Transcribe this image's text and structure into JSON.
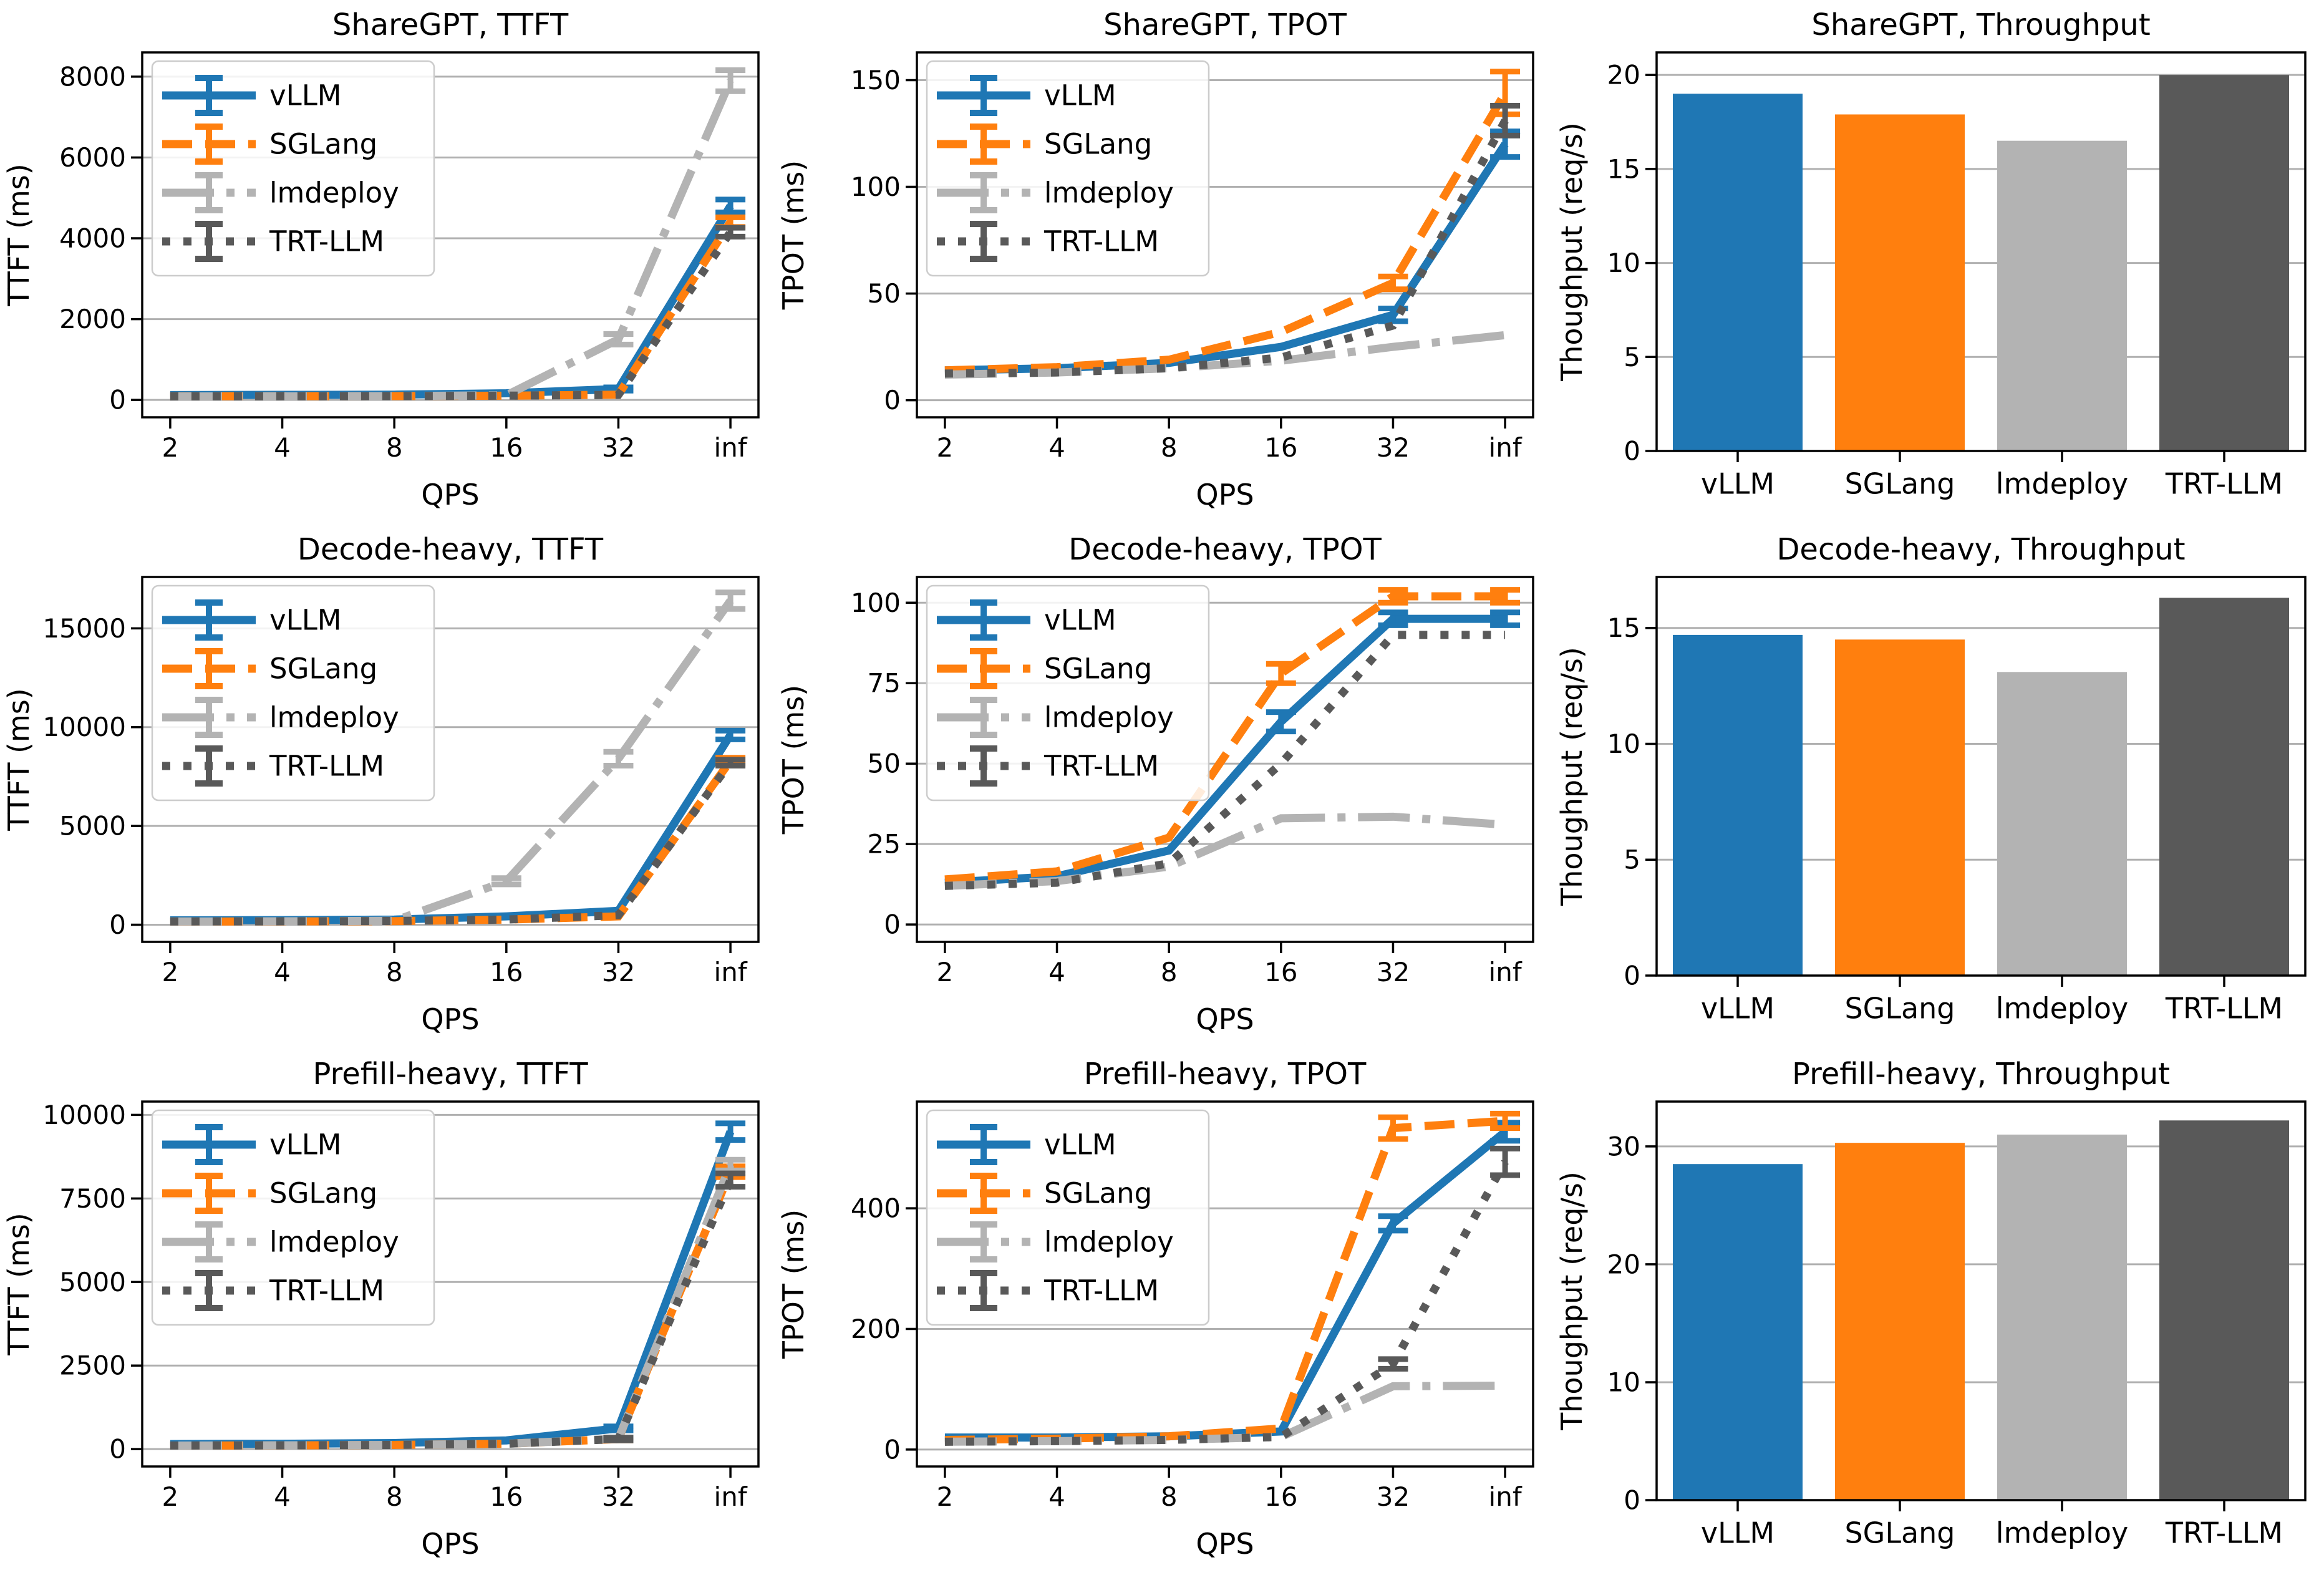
{
  "figure": {
    "background": "#ffffff",
    "grid_color": "#b0b0b0",
    "spine_color": "#000000",
    "legend_border_color": "#cccccc"
  },
  "engines": [
    "vLLM",
    "SGLang",
    "lmdeploy",
    "TRT-LLM"
  ],
  "engine_colors": [
    "#1f77b4",
    "#ff7f0e",
    "#b3b3b3",
    "#595959"
  ],
  "chart_data": [
    {
      "id": "sharegpt-ttft",
      "type": "line",
      "title": "ShareGPT, TTFT",
      "xlabel": "QPS",
      "ylabel": "TTFT (ms)",
      "x_ticklabels": [
        "2",
        "4",
        "8",
        "16",
        "32",
        "inf"
      ],
      "ylim": [
        -430,
        8600
      ],
      "yticks": [
        0,
        2000,
        4000,
        6000,
        8000
      ],
      "legend": true,
      "series": [
        {
          "name": "vLLM",
          "color": "#1f77b4",
          "linestyle": "solid",
          "values": [
            120,
            125,
            130,
            165,
            270,
            4800
          ],
          "yerr": [
            0,
            0,
            0,
            0,
            40,
            160
          ]
        },
        {
          "name": "SGLang",
          "color": "#ff7f0e",
          "linestyle": "dashed",
          "values": [
            90,
            92,
            95,
            105,
            130,
            4400
          ],
          "yerr": [
            0,
            0,
            0,
            0,
            0,
            120
          ]
        },
        {
          "name": "lmdeploy",
          "color": "#b3b3b3",
          "linestyle": "dashdot",
          "values": [
            85,
            88,
            95,
            115,
            1500,
            7900
          ],
          "yerr": [
            0,
            0,
            0,
            0,
            130,
            260
          ]
        },
        {
          "name": "TRT-LLM",
          "color": "#595959",
          "linestyle": "dotted",
          "values": [
            88,
            90,
            95,
            105,
            125,
            4150
          ],
          "yerr": [
            0,
            0,
            0,
            0,
            0,
            110
          ]
        }
      ]
    },
    {
      "id": "sharegpt-tpot",
      "type": "line",
      "title": "ShareGPT, TPOT",
      "xlabel": "QPS",
      "ylabel": "TPOT (ms)",
      "x_ticklabels": [
        "2",
        "4",
        "8",
        "16",
        "32",
        "inf"
      ],
      "ylim": [
        -8,
        163
      ],
      "yticks": [
        0,
        50,
        100,
        150
      ],
      "legend": true,
      "series": [
        {
          "name": "vLLM",
          "color": "#1f77b4",
          "linestyle": "solid",
          "values": [
            14,
            15,
            17.5,
            25,
            40,
            120
          ],
          "yerr": [
            0,
            0,
            0,
            0,
            3,
            6
          ]
        },
        {
          "name": "SGLang",
          "color": "#ff7f0e",
          "linestyle": "dashed",
          "values": [
            14,
            15.5,
            19,
            32,
            55,
            144
          ],
          "yerr": [
            0,
            0,
            0,
            0,
            3,
            10
          ]
        },
        {
          "name": "lmdeploy",
          "color": "#b3b3b3",
          "linestyle": "dashdot",
          "values": [
            12,
            13,
            15,
            18.5,
            25,
            30.5
          ],
          "yerr": [
            0,
            0,
            0,
            0,
            0,
            0
          ]
        },
        {
          "name": "TRT-LLM",
          "color": "#595959",
          "linestyle": "dotted",
          "values": [
            12.5,
            13,
            15,
            20,
            35,
            131
          ],
          "yerr": [
            0,
            0,
            0,
            0,
            0,
            7
          ]
        }
      ]
    },
    {
      "id": "sharegpt-throughput",
      "type": "bar",
      "title": "ShareGPT, Throughput",
      "ylabel": "Thoughput (req/s)",
      "categories": [
        "vLLM",
        "SGLang",
        "lmdeploy",
        "TRT-LLM"
      ],
      "values": [
        19.0,
        17.9,
        16.5,
        20.0
      ],
      "bar_colors": [
        "#1f77b4",
        "#ff7f0e",
        "#b3b3b3",
        "#595959"
      ],
      "ylim": [
        0,
        21.2
      ],
      "yticks": [
        0,
        5,
        10,
        15,
        20
      ]
    },
    {
      "id": "decode-heavy-ttft",
      "type": "line",
      "title": "Decode-heavy, TTFT",
      "xlabel": "QPS",
      "ylabel": "TTFT (ms)",
      "x_ticklabels": [
        "2",
        "4",
        "8",
        "16",
        "32",
        "inf"
      ],
      "ylim": [
        -870,
        17600
      ],
      "yticks": [
        0,
        5000,
        10000,
        15000
      ],
      "legend": true,
      "series": [
        {
          "name": "vLLM",
          "color": "#1f77b4",
          "linestyle": "solid",
          "values": [
            220,
            230,
            260,
            420,
            700,
            9600
          ],
          "yerr": [
            0,
            0,
            0,
            0,
            0,
            220
          ]
        },
        {
          "name": "SGLang",
          "color": "#ff7f0e",
          "linestyle": "dashed",
          "values": [
            160,
            165,
            180,
            260,
            420,
            8300
          ],
          "yerr": [
            0,
            0,
            0,
            0,
            0,
            150
          ]
        },
        {
          "name": "lmdeploy",
          "color": "#b3b3b3",
          "linestyle": "dashdot",
          "values": [
            160,
            170,
            200,
            2200,
            8400,
            16400
          ],
          "yerr": [
            0,
            0,
            0,
            160,
            350,
            420
          ]
        },
        {
          "name": "TRT-LLM",
          "color": "#595959",
          "linestyle": "dotted",
          "values": [
            165,
            170,
            190,
            260,
            480,
            8200
          ],
          "yerr": [
            0,
            0,
            0,
            0,
            0,
            150
          ]
        }
      ]
    },
    {
      "id": "decode-heavy-tpot",
      "type": "line",
      "title": "Decode-heavy, TPOT",
      "xlabel": "QPS",
      "ylabel": "TPOT (ms)",
      "x_ticklabels": [
        "2",
        "4",
        "8",
        "16",
        "32",
        "inf"
      ],
      "ylim": [
        -5.4,
        108
      ],
      "yticks": [
        0,
        25,
        50,
        75,
        100
      ],
      "legend": true,
      "series": [
        {
          "name": "vLLM",
          "color": "#1f77b4",
          "linestyle": "solid",
          "values": [
            13,
            15,
            23,
            63,
            95,
            95
          ],
          "yerr": [
            0,
            0,
            0,
            3,
            2,
            2
          ]
        },
        {
          "name": "SGLang",
          "color": "#ff7f0e",
          "linestyle": "dashed",
          "values": [
            14,
            16.5,
            27,
            78,
            102,
            102
          ],
          "yerr": [
            0,
            0,
            0,
            3,
            2,
            2
          ]
        },
        {
          "name": "lmdeploy",
          "color": "#b3b3b3",
          "linestyle": "dashdot",
          "values": [
            12,
            13.5,
            18,
            33,
            33.5,
            31
          ],
          "yerr": [
            0,
            0,
            0,
            0,
            0,
            0
          ]
        },
        {
          "name": "TRT-LLM",
          "color": "#595959",
          "linestyle": "dotted",
          "values": [
            12,
            13,
            19,
            50,
            90,
            90
          ],
          "yerr": [
            0,
            0,
            0,
            0,
            0,
            0
          ]
        }
      ]
    },
    {
      "id": "decode-heavy-throughput",
      "type": "bar",
      "title": "Decode-heavy, Throughput",
      "ylabel": "Thoughput (req/s)",
      "categories": [
        "vLLM",
        "SGLang",
        "lmdeploy",
        "TRT-LLM"
      ],
      "values": [
        14.7,
        14.5,
        13.1,
        16.3
      ],
      "bar_colors": [
        "#1f77b4",
        "#ff7f0e",
        "#b3b3b3",
        "#595959"
      ],
      "ylim": [
        0,
        17.2
      ],
      "yticks": [
        0,
        5,
        10,
        15
      ]
    },
    {
      "id": "prefill-heavy-ttft",
      "type": "line",
      "title": "Prefill-heavy, TTFT",
      "xlabel": "QPS",
      "ylabel": "TTFT (ms)",
      "x_ticklabels": [
        "2",
        "4",
        "8",
        "16",
        "32",
        "inf"
      ],
      "ylim": [
        -520,
        10400
      ],
      "yticks": [
        0,
        2500,
        5000,
        7500,
        10000
      ],
      "legend": true,
      "series": [
        {
          "name": "vLLM",
          "color": "#1f77b4",
          "linestyle": "solid",
          "values": [
            150,
            160,
            180,
            260,
            620,
            9500
          ],
          "yerr": [
            0,
            0,
            0,
            0,
            60,
            250
          ]
        },
        {
          "name": "SGLang",
          "color": "#ff7f0e",
          "linestyle": "dashed",
          "values": [
            105,
            110,
            125,
            160,
            300,
            8300
          ],
          "yerr": [
            0,
            0,
            0,
            0,
            40,
            160
          ]
        },
        {
          "name": "lmdeploy",
          "color": "#b3b3b3",
          "linestyle": "dashdot",
          "values": [
            105,
            112,
            125,
            160,
            310,
            8500
          ],
          "yerr": [
            0,
            0,
            0,
            0,
            40,
            160
          ]
        },
        {
          "name": "TRT-LLM",
          "color": "#595959",
          "linestyle": "dotted",
          "values": [
            108,
            112,
            125,
            160,
            300,
            8050
          ],
          "yerr": [
            0,
            0,
            0,
            0,
            40,
            200
          ]
        }
      ]
    },
    {
      "id": "prefill-heavy-tpot",
      "type": "line",
      "title": "Prefill-heavy, TPOT",
      "xlabel": "QPS",
      "ylabel": "TPOT (ms)",
      "x_ticklabels": [
        "2",
        "4",
        "8",
        "16",
        "32",
        "inf"
      ],
      "ylim": [
        -28,
        577
      ],
      "yticks": [
        0,
        200,
        400
      ],
      "legend": true,
      "series": [
        {
          "name": "vLLM",
          "color": "#1f77b4",
          "linestyle": "solid",
          "values": [
            20,
            20,
            22,
            30,
            375,
            527
          ],
          "yerr": [
            0,
            0,
            0,
            0,
            12,
            15
          ]
        },
        {
          "name": "SGLang",
          "color": "#ff7f0e",
          "linestyle": "dashed",
          "values": [
            16,
            18,
            22,
            35,
            533,
            545
          ],
          "yerr": [
            0,
            0,
            0,
            0,
            18,
            12
          ]
        },
        {
          "name": "lmdeploy",
          "color": "#b3b3b3",
          "linestyle": "dashdot",
          "values": [
            13,
            14,
            16,
            21,
            105,
            106
          ],
          "yerr": [
            0,
            0,
            0,
            0,
            0,
            0
          ]
        },
        {
          "name": "TRT-LLM",
          "color": "#595959",
          "linestyle": "dotted",
          "values": [
            13,
            14,
            16,
            21,
            142,
            477
          ],
          "yerr": [
            0,
            0,
            0,
            0,
            8,
            22
          ]
        }
      ]
    },
    {
      "id": "prefill-heavy-throughput",
      "type": "bar",
      "title": "Prefill-heavy, Throughput",
      "ylabel": "Thoughput (req/s)",
      "categories": [
        "vLLM",
        "SGLang",
        "lmdeploy",
        "TRT-LLM"
      ],
      "values": [
        28.5,
        30.3,
        31.0,
        32.2
      ],
      "bar_colors": [
        "#1f77b4",
        "#ff7f0e",
        "#b3b3b3",
        "#595959"
      ],
      "ylim": [
        0,
        33.8
      ],
      "yticks": [
        0,
        10,
        20,
        30
      ]
    }
  ]
}
